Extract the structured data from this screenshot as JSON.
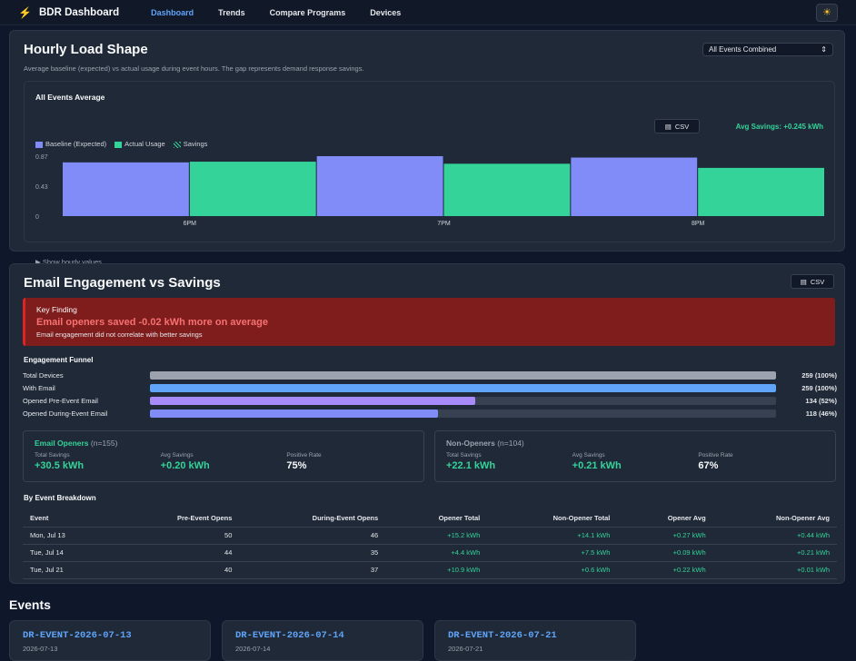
{
  "nav": {
    "brand": "BDR Dashboard",
    "links": [
      "Dashboard",
      "Trends",
      "Compare Programs",
      "Devices"
    ]
  },
  "hourly": {
    "title": "Hourly Load Shape",
    "select": "All Events Combined",
    "description": "Average baseline (expected) vs actual usage during event hours. The gap represents demand response savings.",
    "chart_title": "All Events Average",
    "csv": "CSV",
    "avg_savings": "Avg Savings: +0.245 kWh",
    "legend": [
      "Baseline (Expected)",
      "Actual Usage",
      "Savings"
    ],
    "show_values": "▶ Show hourly values"
  },
  "chart_data": {
    "type": "bar",
    "categories": [
      "6PM",
      "7PM",
      "8PM"
    ],
    "series": [
      {
        "name": "Baseline (Expected)",
        "values": [
          0.78,
          0.87,
          0.85
        ]
      },
      {
        "name": "Actual Usage",
        "values": [
          0.79,
          0.76,
          0.7
        ]
      }
    ],
    "yticks": [
      "0.87",
      "0.43",
      "0"
    ],
    "ylim": [
      0,
      0.87
    ],
    "colors": [
      "#818cf8",
      "#34d399"
    ]
  },
  "email": {
    "title": "Email Engagement vs Savings",
    "csv": "CSV",
    "key_label": "Key Finding",
    "key_headline": "Email openers saved -0.02 kWh more on average",
    "key_note": "Email engagement did not correlate with better savings",
    "funnel_title": "Engagement Funnel",
    "funnel": [
      {
        "label": "Total Devices",
        "value": "259 (100%)",
        "fraction": 1.0,
        "color": "#9ca3af"
      },
      {
        "label": "With Email",
        "value": "259 (100%)",
        "fraction": 1.0,
        "color": "#60a5fa"
      },
      {
        "label": "Opened Pre-Event Email",
        "value": "134 (52%)",
        "fraction": 0.52,
        "color": "#a78bfa"
      },
      {
        "label": "Opened During-Event Email",
        "value": "118 (46%)",
        "fraction": 0.46,
        "color": "#818cf8"
      }
    ],
    "openers": {
      "title": "Email Openers",
      "n": "(n=155)",
      "total_label": "Total Savings",
      "total": "+30.5 kWh",
      "avg_label": "Avg Savings",
      "avg": "+0.20 kWh",
      "rate_label": "Positive Rate",
      "rate": "75%"
    },
    "non_openers": {
      "title": "Non-Openers",
      "n": "(n=104)",
      "total_label": "Total Savings",
      "total": "+22.1 kWh",
      "avg_label": "Avg Savings",
      "avg": "+0.21 kWh",
      "rate_label": "Positive Rate",
      "rate": "67%"
    },
    "breakdown_title": "By Event Breakdown",
    "headers": [
      "Event",
      "Pre-Event Opens",
      "During-Event Opens",
      "Opener Total",
      "Non-Opener Total",
      "Opener Avg",
      "Non-Opener Avg"
    ],
    "rows": [
      [
        "Mon, Jul 13",
        "50",
        "46",
        "+15.2 kWh",
        "+14.1 kWh",
        "+0.27 kWh",
        "+0.44 kWh"
      ],
      [
        "Tue, Jul 14",
        "44",
        "35",
        "+4.4 kWh",
        "+7.5 kWh",
        "+0.09 kWh",
        "+0.21 kWh"
      ],
      [
        "Tue, Jul 21",
        "40",
        "37",
        "+10.9 kWh",
        "+0.6 kWh",
        "+0.22 kWh",
        "+0.01 kWh"
      ]
    ]
  },
  "events": {
    "title": "Events",
    "items": [
      {
        "id": "DR-EVENT-2026-07-13",
        "date": "2026-07-13"
      },
      {
        "id": "DR-EVENT-2026-07-14",
        "date": "2026-07-14"
      },
      {
        "id": "DR-EVENT-2026-07-21",
        "date": "2026-07-21"
      }
    ]
  }
}
